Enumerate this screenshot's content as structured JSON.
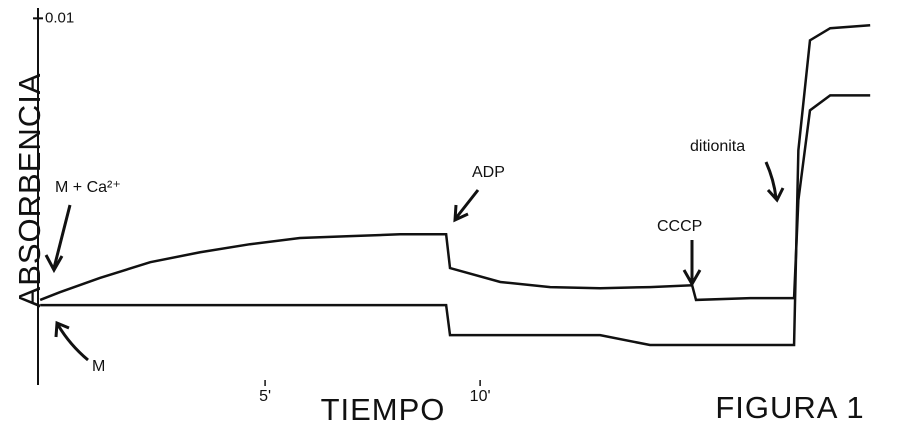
{
  "chart_data": {
    "type": "line",
    "title": "FIGURA 1",
    "x_label": "TIEMPO",
    "y_label": "ABSORBENCIA",
    "annotations": [
      "ADP",
      "CCCP",
      "ditionita"
    ],
    "x": [
      -0.23,
      0.23,
      1.16,
      2.33,
      3.49,
      4.65,
      5.81,
      6.98,
      8.14,
      9.21,
      9.3,
      10.47,
      11.63,
      12.79,
      13.95,
      14.93,
      15.02,
      16.28,
      17.3,
      17.4,
      17.67,
      18.14,
      19.07
    ],
    "series": [
      {
        "name": "M + Ca²⁺",
        "color": "#111111",
        "values": [
          0.00232,
          0.00253,
          0.00292,
          0.00335,
          0.00362,
          0.00384,
          0.00401,
          0.00406,
          0.00411,
          0.00411,
          0.00319,
          0.00281,
          0.00267,
          0.00264,
          0.00267,
          0.00272,
          0.00232,
          0.00237,
          0.00237,
          0.00504,
          0.00749,
          0.0079,
          0.0079
        ]
      },
      {
        "name": "M",
        "color": "#111111",
        "values": [
          0.00218,
          0.00218,
          0.00218,
          0.00218,
          0.00218,
          0.00218,
          0.00218,
          0.00218,
          0.00218,
          0.00218,
          0.00136,
          0.00136,
          0.00136,
          0.00136,
          0.00109,
          0.00109,
          0.00109,
          0.00109,
          0.00109,
          0.0064,
          0.0094,
          0.00973,
          0.00981
        ]
      }
    ],
    "xlim": [
      -0.28,
      19.74
    ],
    "xticks": [
      {
        "value": 5,
        "label": "5'"
      },
      {
        "value": 10,
        "label": "10'"
      }
    ],
    "ylim": [
      0,
      0.0105
    ],
    "yticks": [
      0.01
    ],
    "grid": false
  }
}
